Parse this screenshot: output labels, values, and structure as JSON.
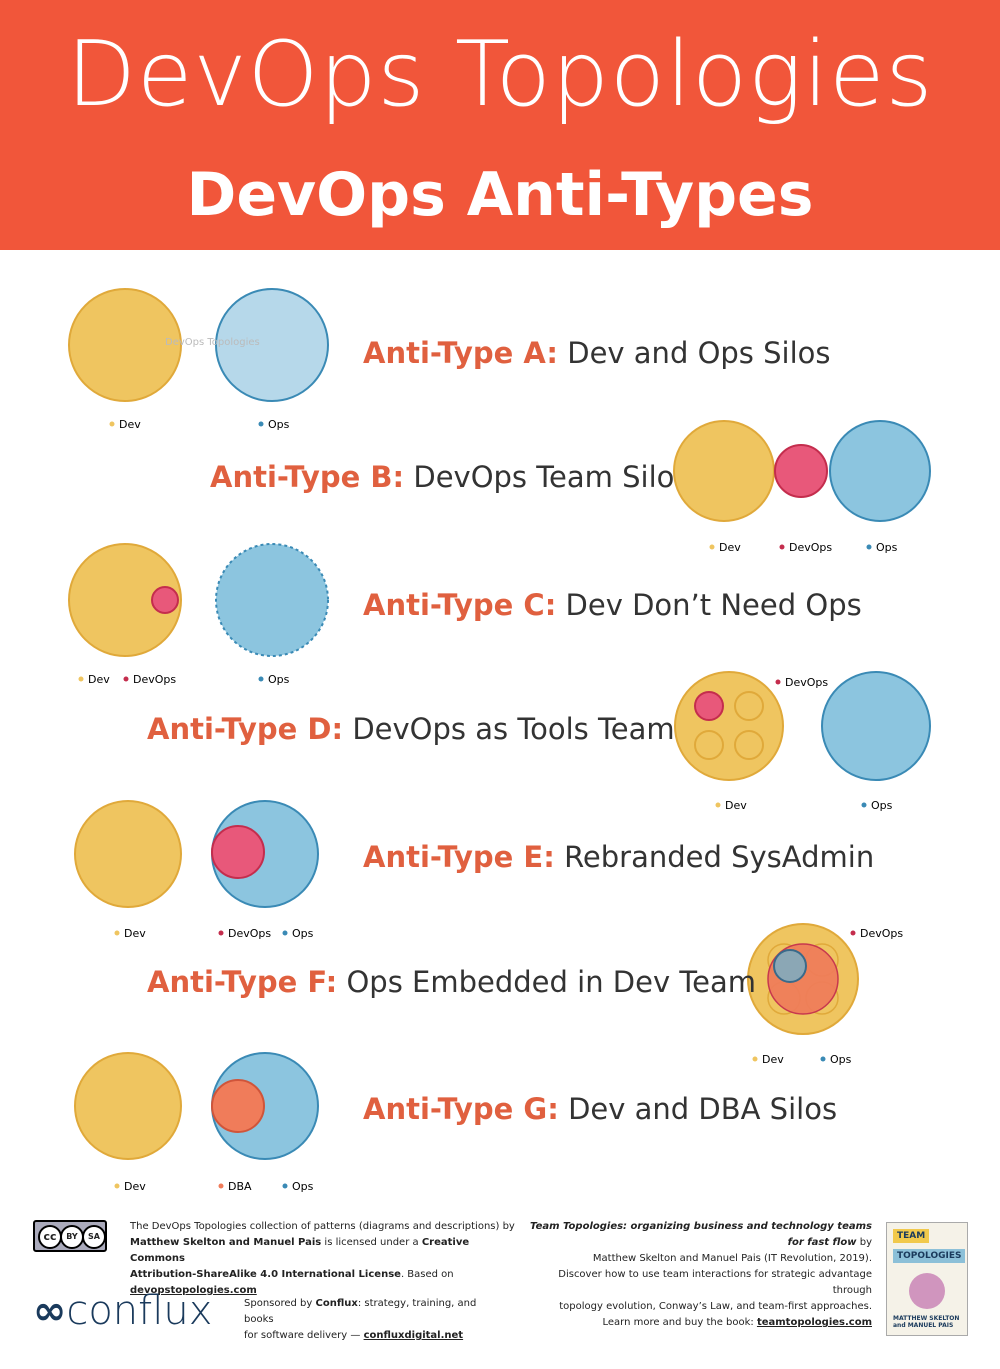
{
  "header": {
    "title": "DevOps Topologies",
    "subtitle": "DevOps Anti-Types"
  },
  "colors": {
    "header_bg": "#f1563a",
    "dev": "#efc560",
    "ops": "#8cc5df",
    "devops": "#e8587a",
    "dba": "#f07c5a",
    "label": "#e0603f"
  },
  "watermark": {
    "text": "DevOps Topologies",
    "sub": "DEVOPSTOPOLOGIES.COM"
  },
  "antitypes": [
    {
      "label": "Anti-Type A:",
      "name": "Dev and Ops Silos",
      "legend": [
        "Dev",
        "Ops"
      ]
    },
    {
      "label": "Anti-Type B:",
      "name": "DevOps Team Silo",
      "legend": [
        "Dev",
        "DevOps",
        "Ops"
      ]
    },
    {
      "label": "Anti-Type C:",
      "name": "Dev Don’t Need Ops",
      "legend": [
        "Dev",
        "DevOps",
        "Ops"
      ]
    },
    {
      "label": "Anti-Type D:",
      "name": "DevOps as Tools Team",
      "legend": [
        "DevOps",
        "Dev",
        "Ops"
      ]
    },
    {
      "label": "Anti-Type E:",
      "name": "Rebranded SysAdmin",
      "legend": [
        "Dev",
        "DevOps",
        "Ops"
      ]
    },
    {
      "label": "Anti-Type F:",
      "name": "Ops Embedded in Dev Team",
      "legend": [
        "DevOps",
        "Dev",
        "Ops"
      ]
    },
    {
      "label": "Anti-Type G:",
      "name": "Dev and DBA Silos",
      "legend": [
        "Dev",
        "DBA",
        "Ops"
      ]
    }
  ],
  "footer": {
    "license_1": "The DevOps Topologies collection of patterns (diagrams and descriptions) by",
    "license_authors": "Matthew Skelton and Manuel Pais",
    "license_2": " is licensed under a ",
    "license_cc": "Creative Commons",
    "license_3": "Attribution-ShareAlike 4.0 International License",
    "license_4": ". Based on ",
    "license_link": "devopstopologies.com",
    "cc_by": "BY",
    "cc_sa": "SA",
    "conflux": "conflux",
    "sponsor_1": "Sponsored by ",
    "sponsor_name": "Conflux",
    "sponsor_2": ": strategy, training, and books",
    "sponsor_3": "for software delivery — ",
    "sponsor_link": "confluxdigital.net",
    "book_title": "Team Topologies: organizing business and technology teams for fast flow",
    "book_by": " by",
    "book_2": "Matthew Skelton and Manuel Pais (IT Revolution, 2019).",
    "book_3": "Discover how to use team interactions for strategic advantage through",
    "book_4": "topology evolution, Conway’s Law, and team-first approaches.",
    "book_5": "Learn more and buy the book: ",
    "book_link": "teamtopologies.com",
    "cover_team": "TEAM",
    "cover_topologies": "TOPOLOGIES",
    "cover_authors": "MATTHEW SKELTON and MANUEL PAIS"
  }
}
